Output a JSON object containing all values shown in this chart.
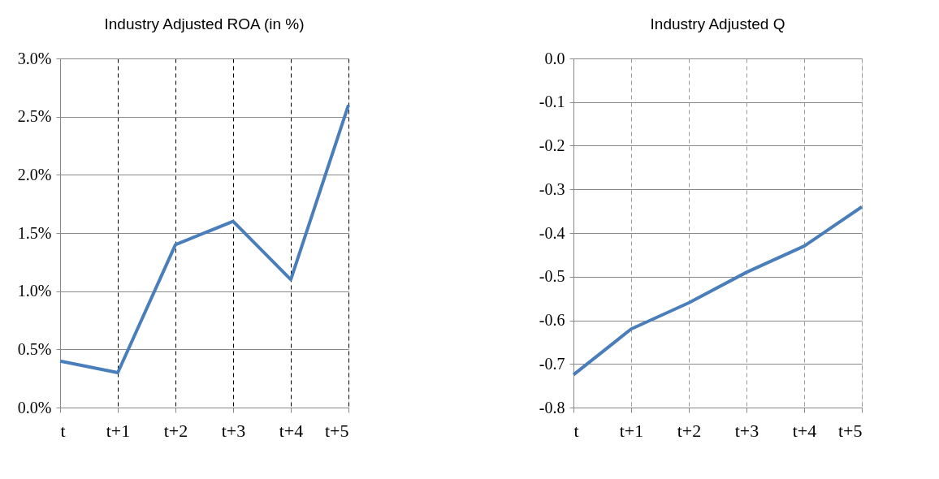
{
  "chart_data": [
    {
      "type": "line",
      "title": "Industry Adjusted ROA (in %)",
      "categories": [
        "t",
        "t+1",
        "t+2",
        "t+3",
        "t+4",
        "t+5"
      ],
      "series": [
        {
          "color": "#4a7ebb",
          "values": [
            0.4,
            0.3,
            1.4,
            1.6,
            1.1,
            2.6
          ]
        }
      ],
      "ylim": [
        0,
        3.0
      ],
      "yticks": [
        {
          "value": 0,
          "label": "0.0%"
        },
        {
          "value": 0.5,
          "label": "0.5%"
        },
        {
          "value": 1.0,
          "label": "1.0%"
        },
        {
          "value": 1.5,
          "label": "1.5%"
        },
        {
          "value": 2.0,
          "label": "2.0%"
        },
        {
          "value": 2.5,
          "label": "2.5%"
        },
        {
          "value": 3.0,
          "label": "3.0%"
        }
      ],
      "grid": true
    },
    {
      "type": "line",
      "title": "Industry Adjusted Q",
      "categories": [
        "t",
        "t+1",
        "t+2",
        "t+3",
        "t+4",
        "t+5"
      ],
      "series": [
        {
          "color": "#4a7ebb",
          "values": [
            -0.725,
            -0.62,
            -0.56,
            -0.49,
            -0.43,
            -0.34
          ]
        }
      ],
      "ylim": [
        -0.8,
        0
      ],
      "yticks": [
        {
          "value": -0.8,
          "label": "-0.8"
        },
        {
          "value": -0.7,
          "label": "-0.7"
        },
        {
          "value": -0.6,
          "label": "-0.6"
        },
        {
          "value": -0.5,
          "label": "-0.5"
        },
        {
          "value": -0.4,
          "label": "-0.4"
        },
        {
          "value": -0.3,
          "label": "-0.3"
        },
        {
          "value": -0.2,
          "label": "-0.2"
        },
        {
          "value": -0.1,
          "label": "-0.1"
        },
        {
          "value": 0,
          "label": "0.0"
        }
      ],
      "grid": true
    }
  ]
}
